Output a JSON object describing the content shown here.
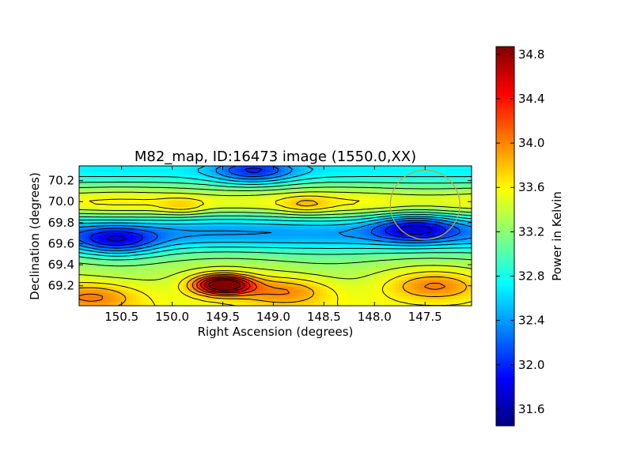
{
  "chart_data": {
    "type": "heatmap",
    "title": "M82_map, ID:16473 image (1550.0,XX)",
    "xlabel": "Right Ascension (degrees)",
    "ylabel": "Declination (degrees)",
    "xlim": [
      150.92,
      147.04
    ],
    "ylim": [
      69.01,
      70.34
    ],
    "x_ticks": [
      "150.5",
      "150.0",
      "149.5",
      "149.0",
      "148.5",
      "148.0",
      "147.5"
    ],
    "x_tick_values": [
      150.5,
      150.0,
      149.5,
      149.0,
      148.5,
      148.0,
      147.5
    ],
    "y_ticks": [
      "69.2",
      "69.4",
      "69.6",
      "69.8",
      "70.0",
      "70.2"
    ],
    "y_tick_values": [
      69.2,
      69.4,
      69.6,
      69.8,
      70.0,
      70.2
    ],
    "colormap": "jet",
    "contours": true,
    "value_range": [
      31.45,
      34.87
    ],
    "features": [
      {
        "kind": "peak",
        "ra": 149.5,
        "dec": 69.21,
        "value": 34.8
      },
      {
        "kind": "high",
        "ra": 148.9,
        "dec": 69.15,
        "value": 33.9
      },
      {
        "kind": "high",
        "ra": 147.4,
        "dec": 69.2,
        "value": 33.8
      },
      {
        "kind": "high",
        "ra": 150.8,
        "dec": 69.1,
        "value": 33.5
      },
      {
        "kind": "low",
        "ra": 150.55,
        "dec": 69.62,
        "value": 31.5
      },
      {
        "kind": "low",
        "ra": 149.2,
        "dec": 70.3,
        "value": 31.8
      },
      {
        "kind": "low",
        "ra": 147.6,
        "dec": 69.75,
        "value": 32.1
      },
      {
        "kind": "local",
        "ra": 149.9,
        "dec": 69.95,
        "value": 33.0
      },
      {
        "kind": "local",
        "ra": 148.68,
        "dec": 69.97,
        "value": 33.0
      }
    ],
    "beam_circle": {
      "ra": 147.5,
      "dec": 69.97,
      "radius_deg": 0.33,
      "color": "#b8a94a"
    },
    "colorbar": {
      "label": "Power in Kelvin",
      "ticks": [
        "31.6",
        "32.0",
        "32.4",
        "32.8",
        "33.2",
        "33.6",
        "34.0",
        "34.4",
        "34.8"
      ],
      "tick_values": [
        31.6,
        32.0,
        32.4,
        32.8,
        33.2,
        33.6,
        34.0,
        34.4,
        34.8
      ],
      "range": [
        31.45,
        34.87
      ]
    }
  }
}
